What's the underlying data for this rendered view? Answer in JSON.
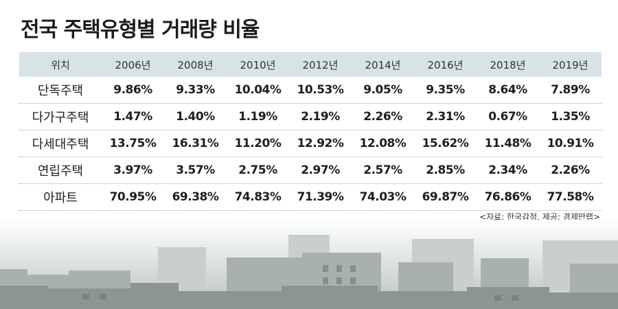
{
  "chart_data": {
    "type": "table",
    "title": "전국 주택유형별 거래량 비율",
    "columns": [
      "위치",
      "2006년",
      "2008년",
      "2010년",
      "2012년",
      "2014년",
      "2016년",
      "2018년",
      "2019년"
    ],
    "rows": [
      {
        "label": "단독주택",
        "values": [
          "9.86%",
          "9.33%",
          "10.04%",
          "10.53%",
          "9.05%",
          "9.35%",
          "8.64%",
          "7.89%"
        ]
      },
      {
        "label": "다가구주택",
        "values": [
          "1.47%",
          "1.40%",
          "1.19%",
          "2.19%",
          "2.26%",
          "2.31%",
          "0.67%",
          "1.35%"
        ]
      },
      {
        "label": "다세대주택",
        "values": [
          "13.75%",
          "16.31%",
          "11.20%",
          "12.92%",
          "12.08%",
          "15.62%",
          "11.48%",
          "10.91%"
        ]
      },
      {
        "label": "연립주택",
        "values": [
          "3.97%",
          "3.57%",
          "2.75%",
          "2.97%",
          "2.57%",
          "2.85%",
          "2.34%",
          "2.26%"
        ]
      },
      {
        "label": "아파트",
        "values": [
          "70.95%",
          "69.38%",
          "74.83%",
          "71.39%",
          "74.03%",
          "69.87%",
          "76.86%",
          "77.58%"
        ]
      }
    ],
    "source": "<자료: 한국감정, 제공: 경제만랩>"
  },
  "colors": {
    "header_bg": "#d7e3e5",
    "background_photo": "hazy city skyline"
  }
}
